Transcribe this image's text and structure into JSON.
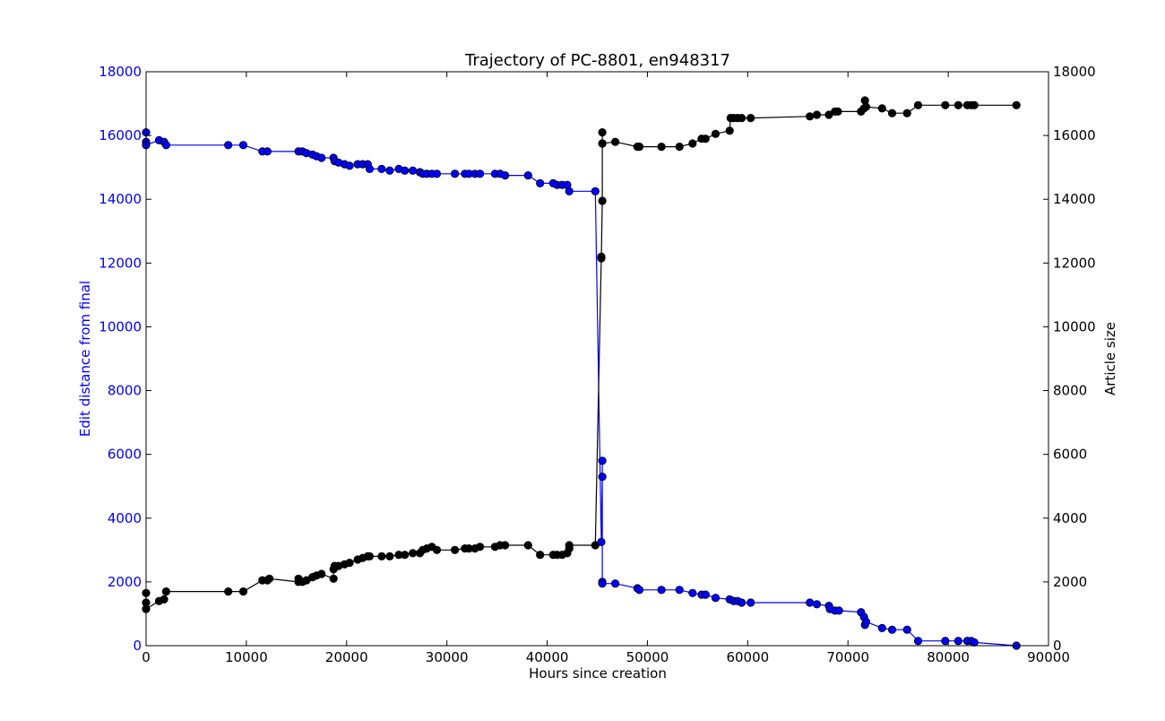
{
  "chart_data": {
    "type": "line",
    "title": "Trajectory of PC-8801, en948317",
    "xlabel": "Hours since creation",
    "ylabel_left": "Edit distance from final",
    "ylabel_right": "Article size",
    "xlim": [
      0,
      90000
    ],
    "ylim_left": [
      0,
      18000
    ],
    "ylim_right": [
      0,
      18000
    ],
    "x_ticks": [
      "0",
      "10000",
      "20000",
      "30000",
      "40000",
      "50000",
      "60000",
      "70000",
      "80000",
      "90000"
    ],
    "y_ticks_left": [
      "0",
      "2000",
      "4000",
      "6000",
      "8000",
      "10000",
      "12000",
      "14000",
      "16000",
      "18000"
    ],
    "y_ticks_right": [
      "0",
      "2000",
      "4000",
      "6000",
      "8000",
      "10000",
      "12000",
      "14000",
      "16000",
      "18000"
    ],
    "grid": false,
    "colors": {
      "left_axis": "#0000ff",
      "edit_distance": "#0000ff",
      "article_size": "#000000"
    },
    "series": [
      {
        "axis": "left",
        "color": "#0000ff",
        "x": [
          0,
          0,
          0,
          1300,
          1800,
          2000,
          8200,
          9700,
          11600,
          12100,
          15200,
          15600,
          16000,
          16600,
          17000,
          17500,
          18700,
          18800,
          19200,
          19800,
          20300,
          21100,
          21600,
          22100,
          22300,
          23500,
          24300,
          25200,
          25800,
          26600,
          27300,
          27600,
          28000,
          28500,
          29000,
          30800,
          31800,
          32200,
          32800,
          33300,
          34800,
          35300,
          35800,
          38100,
          39300,
          40600,
          41000,
          41500,
          42000,
          42200,
          44800,
          45400,
          45500,
          45500,
          45500,
          45500,
          46800,
          49000,
          49200,
          51400,
          53200,
          54500,
          55400,
          55800,
          56800,
          58200,
          58600,
          59000,
          59400,
          60300,
          66200,
          66900,
          68100,
          68200,
          68700,
          69100,
          71300,
          71600,
          71700,
          71800,
          73400,
          74400,
          75900,
          77000,
          79700,
          81000,
          81900,
          82300,
          82600,
          86800
        ],
        "y": [
          16100,
          15800,
          15700,
          15850,
          15800,
          15700,
          15700,
          15700,
          15500,
          15500,
          15500,
          15500,
          15450,
          15400,
          15350,
          15300,
          15300,
          15200,
          15150,
          15100,
          15050,
          15100,
          15100,
          15100,
          14950,
          14950,
          14900,
          14950,
          14900,
          14900,
          14850,
          14800,
          14800,
          14800,
          14800,
          14800,
          14800,
          14800,
          14800,
          14800,
          14800,
          14800,
          14750,
          14750,
          14500,
          14500,
          14450,
          14450,
          14450,
          14250,
          14250,
          3250,
          5300,
          5800,
          2000,
          1950,
          1950,
          1800,
          1750,
          1750,
          1750,
          1650,
          1600,
          1600,
          1500,
          1450,
          1400,
          1400,
          1350,
          1350,
          1350,
          1300,
          1250,
          1150,
          1100,
          1100,
          1050,
          900,
          650,
          750,
          550,
          500,
          500,
          150,
          150,
          150,
          150,
          150,
          100,
          0
        ]
      },
      {
        "axis": "right",
        "color": "#000000",
        "x": [
          0,
          0,
          0,
          1300,
          1800,
          2000,
          8200,
          9700,
          11600,
          12100,
          12300,
          15200,
          15200,
          15600,
          16000,
          16600,
          17000,
          17500,
          18700,
          18700,
          18800,
          19200,
          19800,
          20300,
          21100,
          21600,
          22100,
          22300,
          23500,
          24300,
          25200,
          25800,
          26600,
          27300,
          27600,
          28000,
          28500,
          29000,
          30800,
          31800,
          32200,
          32800,
          33300,
          34800,
          35300,
          35800,
          38100,
          39300,
          40600,
          41000,
          41500,
          42000,
          42200,
          42200,
          44800,
          45400,
          45400,
          45500,
          45500,
          45500,
          45500,
          46800,
          49000,
          49200,
          51400,
          53200,
          54500,
          55400,
          55800,
          56800,
          58200,
          58300,
          58600,
          59000,
          59400,
          60300,
          66200,
          66900,
          68100,
          68700,
          69000,
          71300,
          71600,
          71700,
          71800,
          73400,
          74400,
          75900,
          77000,
          79700,
          81000,
          81900,
          82300,
          82600,
          86800
        ],
        "y": [
          1650,
          1350,
          1150,
          1400,
          1450,
          1700,
          1700,
          1700,
          2050,
          2050,
          2100,
          2000,
          2100,
          2000,
          2050,
          2150,
          2200,
          2250,
          2100,
          2400,
          2500,
          2500,
          2550,
          2600,
          2700,
          2750,
          2800,
          2800,
          2800,
          2800,
          2850,
          2850,
          2900,
          2900,
          3000,
          3050,
          3100,
          3000,
          3000,
          3050,
          3050,
          3050,
          3100,
          3100,
          3150,
          3150,
          3150,
          2850,
          2850,
          2850,
          2850,
          2900,
          3050,
          3150,
          3150,
          12200,
          12150,
          13950,
          15750,
          16100,
          15750,
          15800,
          15650,
          15650,
          15650,
          15650,
          15750,
          15900,
          15900,
          16050,
          16150,
          16550,
          16550,
          16550,
          16550,
          16550,
          16600,
          16650,
          16650,
          16750,
          16750,
          16750,
          16850,
          17100,
          16900,
          16850,
          16700,
          16700,
          16950,
          16950,
          16950,
          16950,
          16950,
          16950,
          16950
        ]
      }
    ]
  }
}
